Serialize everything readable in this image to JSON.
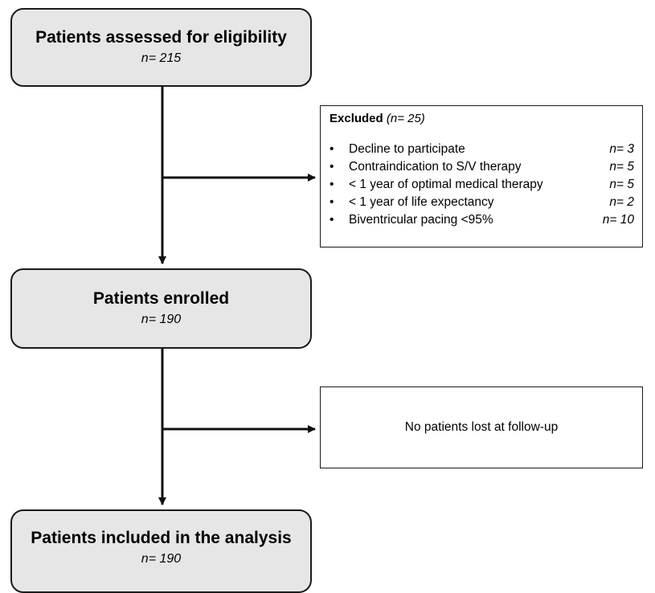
{
  "boxes": {
    "assessed": {
      "title": "Patients assessed for eligibility",
      "n": "n= 215"
    },
    "enrolled": {
      "title": "Patients enrolled",
      "n": "n= 190"
    },
    "analysis": {
      "title": "Patients included in the analysis",
      "n": "n= 190"
    }
  },
  "excluded": {
    "label": "Excluded",
    "count": "(n= 25)",
    "items": [
      {
        "text": "Decline to participate",
        "n": "n= 3"
      },
      {
        "text": "Contraindication to S/V therapy",
        "n": "n= 5"
      },
      {
        "text": "< 1 year of optimal medical therapy",
        "n": "n= 5"
      },
      {
        "text": "< 1 year of life expectancy",
        "n": "n= 2"
      },
      {
        "text": "Biventricular pacing <95%",
        "n": "n= 10"
      }
    ]
  },
  "lost": {
    "text": "No patients lost at follow-up"
  },
  "colors": {
    "box_fill": "#e6e6e6",
    "stroke": "#1a1a1a"
  }
}
